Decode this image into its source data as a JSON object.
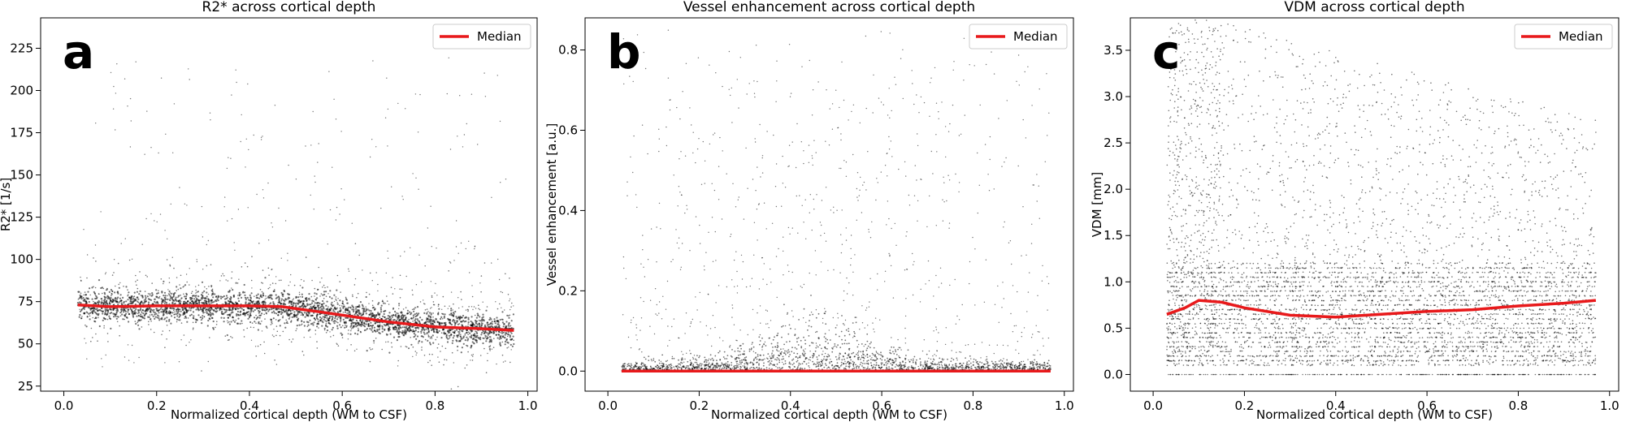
{
  "figure": {
    "legend_label": "Median",
    "median_color": "#e8191b",
    "scatter_color": "#000000"
  },
  "chart_data": [
    {
      "type": "scatter",
      "panel_letter": "a",
      "title": "R2* across cortical depth",
      "xlabel": "Normalized cortical depth (WM to CSF)",
      "ylabel": "R2* [1/s]",
      "xlim": [
        -0.05,
        1.02
      ],
      "ylim": [
        22,
        243
      ],
      "xticks": [
        0.0,
        0.2,
        0.4,
        0.6,
        0.8,
        1.0
      ],
      "xtick_labels": [
        "0.0",
        "0.2",
        "0.4",
        "0.6",
        "0.8",
        "1.0"
      ],
      "yticks": [
        25,
        50,
        75,
        100,
        125,
        150,
        175,
        200,
        225
      ],
      "ytick_labels": [
        "25",
        "50",
        "75",
        "100",
        "125",
        "150",
        "175",
        "200",
        "225"
      ],
      "grid": false,
      "legend": {
        "position": "top-right"
      },
      "scatter_description": "dense point cloud centered on the median with sparse outliers up to ~235",
      "median_series": {
        "name": "Median",
        "x": [
          0.03,
          0.1,
          0.2,
          0.3,
          0.4,
          0.47,
          0.55,
          0.6,
          0.7,
          0.8,
          0.9,
          0.97
        ],
        "y": [
          73,
          72,
          72.5,
          72.5,
          72.5,
          72,
          69,
          67,
          63,
          60,
          59,
          58
        ]
      }
    },
    {
      "type": "scatter",
      "panel_letter": "b",
      "title": "Vessel enhancement across cortical depth",
      "xlabel": "Normalized cortical depth (WM to CSF)",
      "ylabel": "Vessel enhancement [a.u.]",
      "xlim": [
        -0.05,
        1.02
      ],
      "ylim": [
        -0.05,
        0.88
      ],
      "xticks": [
        0.0,
        0.2,
        0.4,
        0.6,
        0.8,
        1.0
      ],
      "xtick_labels": [
        "0.0",
        "0.2",
        "0.4",
        "0.6",
        "0.8",
        "1.0"
      ],
      "yticks": [
        0.0,
        0.2,
        0.4,
        0.6,
        0.8
      ],
      "ytick_labels": [
        "0.0",
        "0.2",
        "0.4",
        "0.6",
        "0.8"
      ],
      "grid": false,
      "legend": {
        "position": "top-right"
      },
      "scatter_description": "mass of points near 0 with a hump around depth 0.45, sparse points up to ~0.85",
      "median_series": {
        "name": "Median",
        "x": [
          0.03,
          0.2,
          0.4,
          0.6,
          0.8,
          0.97
        ],
        "y": [
          0.0,
          0.0,
          0.0,
          0.0,
          0.0,
          0.0
        ]
      }
    },
    {
      "type": "scatter",
      "panel_letter": "c",
      "title": "VDM across cortical depth",
      "xlabel": "Normalized cortical depth (WM to CSF)",
      "ylabel": "VDM [mm]",
      "xlim": [
        -0.05,
        1.02
      ],
      "ylim": [
        -0.18,
        3.85
      ],
      "xticks": [
        0.0,
        0.2,
        0.4,
        0.6,
        0.8,
        1.0
      ],
      "xtick_labels": [
        "0.0",
        "0.2",
        "0.4",
        "0.6",
        "0.8",
        "1.0"
      ],
      "yticks": [
        0.0,
        0.5,
        1.0,
        1.5,
        2.0,
        2.5,
        3.0,
        3.5
      ],
      "ytick_labels": [
        "0.0",
        "0.5",
        "1.0",
        "1.5",
        "2.0",
        "2.5",
        "3.0",
        "3.5"
      ],
      "grid": false,
      "legend": {
        "position": "top-right"
      },
      "scatter_description": "dense banded cloud from 0 to ~3.8, densest below 1.2",
      "median_series": {
        "name": "Median",
        "x": [
          0.03,
          0.07,
          0.1,
          0.15,
          0.2,
          0.3,
          0.4,
          0.5,
          0.6,
          0.7,
          0.8,
          0.9,
          0.97
        ],
        "y": [
          0.65,
          0.72,
          0.8,
          0.78,
          0.72,
          0.64,
          0.62,
          0.65,
          0.68,
          0.7,
          0.74,
          0.77,
          0.8
        ]
      }
    }
  ]
}
